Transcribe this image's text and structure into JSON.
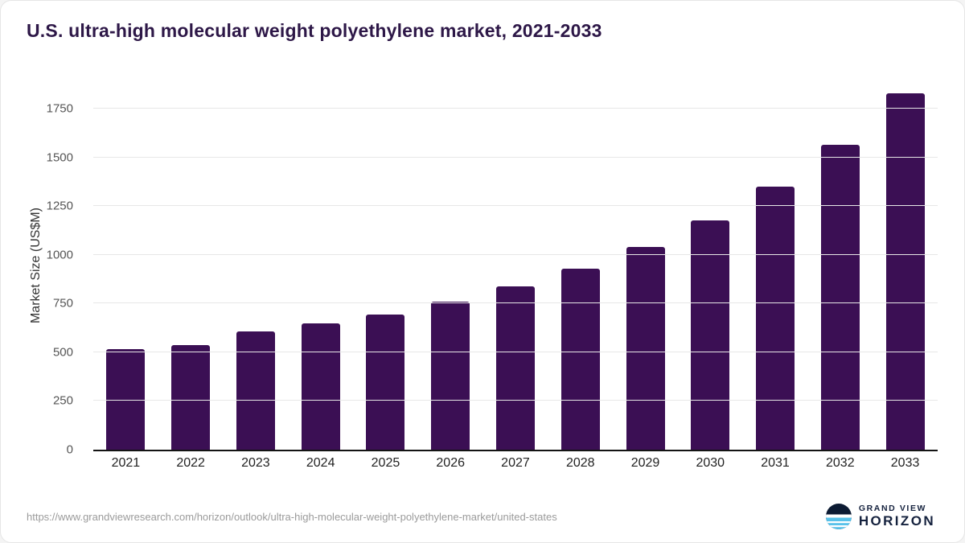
{
  "title": "U.S. ultra-high molecular weight polyethylene market, 2021-2033",
  "chart_data": {
    "type": "bar",
    "title": "U.S. ultra-high molecular weight polyethylene market, 2021-2033",
    "categories": [
      "2021",
      "2022",
      "2023",
      "2024",
      "2025",
      "2026",
      "2027",
      "2028",
      "2029",
      "2030",
      "2031",
      "2032",
      "2033"
    ],
    "values": [
      515,
      535,
      605,
      648,
      695,
      758,
      838,
      928,
      1040,
      1175,
      1348,
      1562,
      1830
    ],
    "xlabel": "",
    "ylabel": "Market Size (US$M)",
    "ylim": [
      0,
      1890
    ],
    "yticks": [
      0,
      250,
      500,
      750,
      1000,
      1250,
      1500,
      1750
    ],
    "grid": "horizontal",
    "legend": "none",
    "bar_color": "#3b0f54"
  },
  "colors": {
    "title_text": "#2d1747",
    "bar": "#3b0f54",
    "axis_line": "#141414",
    "gridline": "#e7e7e7"
  },
  "footer": {
    "source_url": "https://www.grandviewresearch.com/horizon/outlook/ultra-high-molecular-weight-polyethylene-market/united-states",
    "logo_line1": "GRAND VIEW",
    "logo_line2": "HORIZON"
  }
}
